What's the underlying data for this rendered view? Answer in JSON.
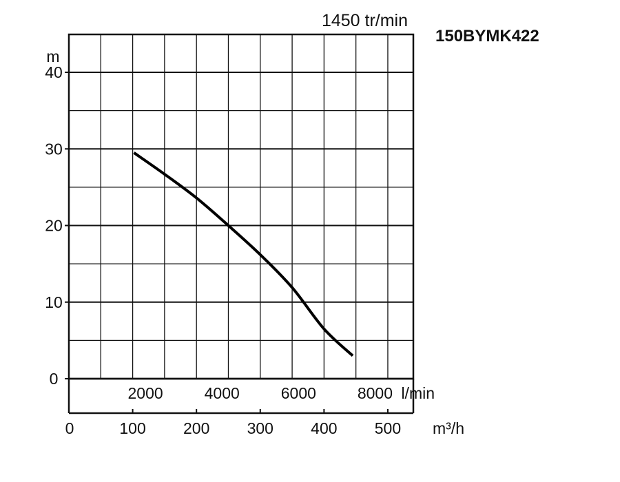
{
  "speed_label": "1450 tr/min",
  "model_label": "150BYMK422",
  "chart_data": {
    "type": "line",
    "title": "",
    "ylabel": "m",
    "ylim": [
      0,
      45
    ],
    "y_ticks": [
      0,
      10,
      20,
      30,
      40
    ],
    "y_top_partial_tick": "50",
    "x_primary": {
      "unit": "m³/h",
      "xlim": [
        0,
        540
      ],
      "ticks": [
        0,
        100,
        200,
        300,
        400,
        500
      ]
    },
    "x_secondary": {
      "unit": "l/min",
      "ticks": [
        2000,
        4000,
        6000,
        8000
      ]
    },
    "grid": true,
    "series": [
      {
        "x": [
          102,
          150,
          200,
          250,
          300,
          350,
          400,
          445
        ],
        "y": [
          29.5,
          26.7,
          23.6,
          20.0,
          16.2,
          11.9,
          6.5,
          3.0
        ]
      }
    ]
  },
  "colors": {
    "axis": "#111111",
    "grid": "#111111",
    "curve": "#000000"
  }
}
